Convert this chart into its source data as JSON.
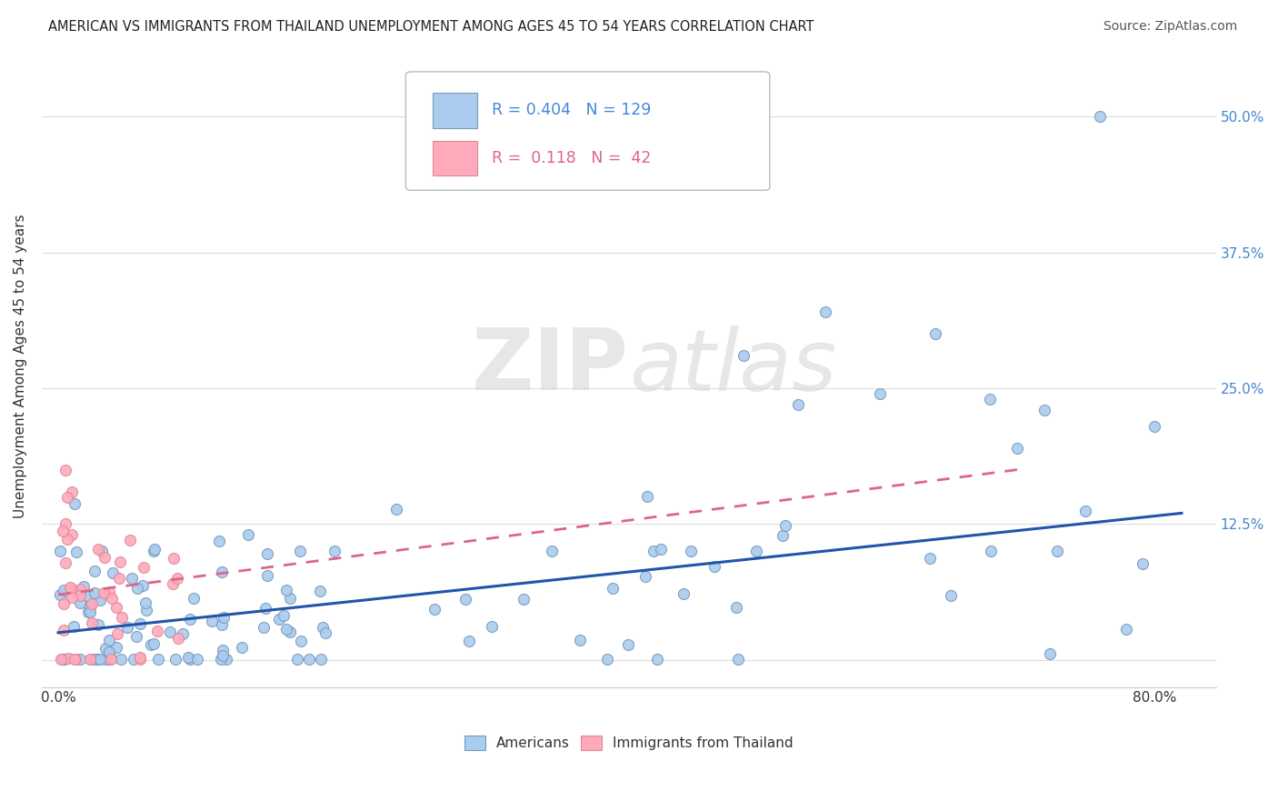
{
  "title": "AMERICAN VS IMMIGRANTS FROM THAILAND UNEMPLOYMENT AMONG AGES 45 TO 54 YEARS CORRELATION CHART",
  "source": "Source: ZipAtlas.com",
  "ylabel": "Unemployment Among Ages 45 to 54 years",
  "watermark_zip": "ZIP",
  "watermark_atlas": "atlas",
  "legend_am_r": "R = 0.404",
  "legend_am_n": "N = 129",
  "legend_th_r": "R =  0.118",
  "legend_th_n": "N =  42",
  "american_color": "#aaccee",
  "american_edge": "#7799bb",
  "thailand_color": "#ffaabb",
  "thailand_edge": "#dd8899",
  "trend_am_color": "#2255aa",
  "trend_th_color": "#dd6688",
  "background_color": "#ffffff",
  "grid_color": "#dddddd",
  "title_color": "#222222",
  "source_color": "#555555",
  "ytick_color": "#4488cc",
  "legend_text_am_color": "#4488dd",
  "legend_text_th_color": "#dd6688"
}
